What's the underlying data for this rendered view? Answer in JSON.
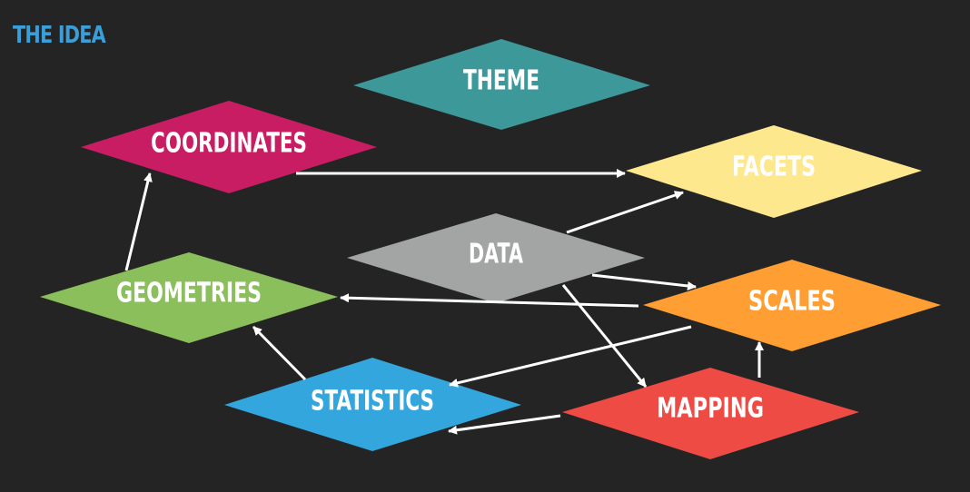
{
  "slide": {
    "title": "THE IDEA",
    "title_color": "#3a9fd9"
  },
  "nodes": {
    "theme": {
      "label": "THEME",
      "color": "#3d989a"
    },
    "coordinates": {
      "label": "COORDINATES",
      "color": "#c91d63"
    },
    "facets": {
      "label": "FACETS",
      "color": "#fde88d"
    },
    "data": {
      "label": "DATA",
      "color": "#a3a5a4"
    },
    "geometries": {
      "label": "GEOMETRIES",
      "color": "#8bbf5b"
    },
    "scales": {
      "label": "SCALES",
      "color": "#ff9e32"
    },
    "statistics": {
      "label": "STATISTICS",
      "color": "#33a6dd"
    },
    "mapping": {
      "label": "MAPPING",
      "color": "#ee4b45"
    }
  },
  "edges": [
    {
      "from": "coordinates",
      "to": "facets"
    },
    {
      "from": "data",
      "to": "facets"
    },
    {
      "from": "data",
      "to": "scales"
    },
    {
      "from": "data",
      "to": "mapping"
    },
    {
      "from": "scales",
      "to": "geometries"
    },
    {
      "from": "scales",
      "to": "statistics"
    },
    {
      "from": "mapping",
      "to": "scales"
    },
    {
      "from": "mapping",
      "to": "statistics"
    },
    {
      "from": "statistics",
      "to": "geometries"
    },
    {
      "from": "geometries",
      "to": "coordinates"
    }
  ],
  "colors": {
    "background": "#242424",
    "arrow": "#ffffff",
    "label": "#ffffff"
  }
}
